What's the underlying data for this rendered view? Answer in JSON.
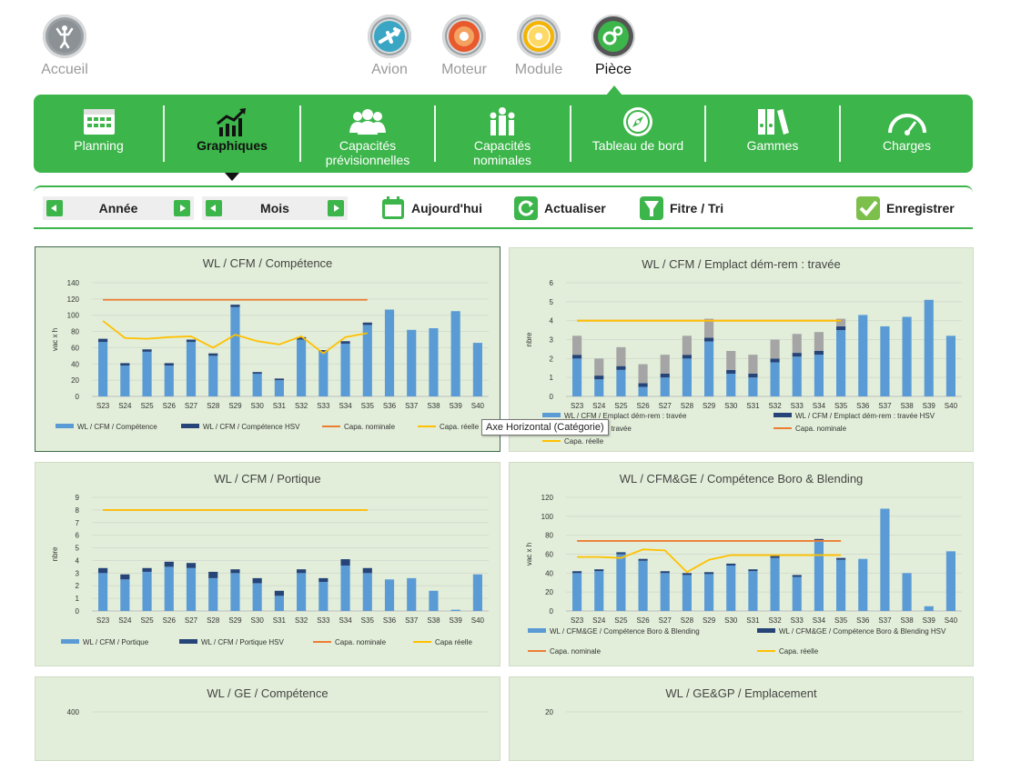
{
  "topnav": [
    {
      "label": "Accueil",
      "icon": "person-icon",
      "active": false
    },
    {
      "label": "Avion",
      "icon": "airplane-icon",
      "active": false
    },
    {
      "label": "Moteur",
      "icon": "engine-icon",
      "active": false
    },
    {
      "label": "Module",
      "icon": "module-icon",
      "active": false
    },
    {
      "label": "Pièce",
      "icon": "gears-icon",
      "active": true
    }
  ],
  "ribbon": [
    {
      "label": "Planning",
      "icon": "calendar-icon",
      "active": false
    },
    {
      "label": "Graphiques",
      "icon": "chart-trend-icon",
      "active": true
    },
    {
      "label": "Capacités prévisionnelles",
      "line1": "Capacités",
      "line2": "prévisionnelles",
      "icon": "people-icon",
      "active": false
    },
    {
      "label": "Capacités nominales",
      "line1": "Capacités",
      "line2": "nominales",
      "icon": "team-icon",
      "active": false
    },
    {
      "label": "Tableau de bord",
      "icon": "compass-icon",
      "active": false
    },
    {
      "label": "Gammes",
      "icon": "binders-icon",
      "active": false
    },
    {
      "label": "Charges",
      "icon": "gauge-icon",
      "active": false
    }
  ],
  "toolbar": {
    "year_label": "Année",
    "month_label": "Mois",
    "today_label": "Aujourd'hui",
    "refresh_label": "Actualiser",
    "filter_label": "Fitre / Tri",
    "save_label": "Enregistrer"
  },
  "tooltip": "Axe Horizontal (Catégorie)",
  "colors": {
    "green": "#3cb54a",
    "bar_light": "#5b9bd5",
    "bar_dark": "#264478",
    "bar_grey": "#a5a5a5",
    "nominal": "#ed7d31",
    "real": "#ffc000",
    "panel_bg": "#e2eed9"
  },
  "chart_data": [
    {
      "type": "bar",
      "title": "WL / CFM / Compétence",
      "ylabel": "vac x h",
      "ylim": [
        0,
        140
      ],
      "yticks": [
        0,
        20,
        40,
        60,
        80,
        100,
        120,
        140
      ],
      "categories": [
        "S23",
        "S24",
        "S25",
        "S26",
        "S27",
        "S28",
        "S29",
        "S30",
        "S31",
        "S32",
        "S33",
        "S34",
        "S35",
        "S36",
        "S37",
        "S38",
        "S39",
        "S40"
      ],
      "series": [
        {
          "name": "WL / CFM / Compétence",
          "kind": "bar",
          "values": [
            67,
            38,
            55,
            38,
            67,
            50,
            110,
            28,
            20,
            70,
            55,
            65,
            88,
            107,
            82,
            84,
            105,
            66
          ]
        },
        {
          "name": "WL / CFM / Compétence HSV",
          "kind": "bar-stack",
          "values": [
            4,
            3,
            3,
            3,
            3,
            3,
            3,
            2,
            2,
            3,
            2,
            3,
            3,
            0,
            0,
            0,
            0,
            0
          ]
        },
        {
          "name": "Capa. nominale",
          "kind": "line",
          "values": [
            119,
            119,
            119,
            119,
            119,
            119,
            119,
            119,
            119,
            119,
            119,
            119,
            119,
            null,
            null,
            null,
            null,
            null
          ]
        },
        {
          "name": "Capa. réelle",
          "kind": "line",
          "values": [
            93,
            72,
            71,
            73,
            74,
            60,
            76,
            68,
            64,
            74,
            53,
            73,
            78,
            null,
            null,
            null,
            null,
            null
          ]
        }
      ],
      "legend": [
        {
          "name": "WL / CFM / Compétence"
        },
        {
          "name": "WL / CFM / Compétence HSV"
        },
        {
          "name": "Capa. nominale"
        },
        {
          "name": "Capa. réelle"
        }
      ]
    },
    {
      "type": "bar",
      "title": "WL / CFM / Emplact dém-rem : travée",
      "ylabel": "nbre",
      "ylim": [
        0,
        6
      ],
      "yticks": [
        0,
        1,
        2,
        3,
        4,
        5,
        6
      ],
      "categories": [
        "S23",
        "S24",
        "S25",
        "S26",
        "S27",
        "S28",
        "S29",
        "S30",
        "S31",
        "S32",
        "S33",
        "S34",
        "S35",
        "S36",
        "S37",
        "S38",
        "S39",
        "S40"
      ],
      "series": [
        {
          "name": "WL / CFM / Emplact dém-rem : travée",
          "kind": "bar",
          "values": [
            2.0,
            0.9,
            1.4,
            0.5,
            1.0,
            2.0,
            2.9,
            1.2,
            1.0,
            1.8,
            2.1,
            2.2,
            3.5,
            4.3,
            3.7,
            4.2,
            5.1,
            3.2
          ]
        },
        {
          "name": "WL / CFM / Emplact dém-rem : travée HSV",
          "kind": "bar-stack",
          "values": [
            0.2,
            0.2,
            0.2,
            0.2,
            0.2,
            0.2,
            0.2,
            0.2,
            0.2,
            0.2,
            0.2,
            0.2,
            0.2,
            0,
            0,
            0,
            0,
            0
          ]
        },
        {
          "name": "Emplact dém-rem : travée",
          "kind": "bar-stack2",
          "values": [
            1.0,
            0.9,
            1.0,
            1.0,
            1.0,
            1.0,
            1.0,
            1.0,
            1.0,
            1.0,
            1.0,
            1.0,
            0.4,
            0,
            0,
            0,
            0,
            0
          ]
        },
        {
          "name": "Capa. nominale",
          "kind": "line",
          "values": [
            4,
            4,
            4,
            4,
            4,
            4,
            4,
            4,
            4,
            4,
            4,
            4,
            4,
            null,
            null,
            null,
            null,
            null
          ]
        },
        {
          "name": "Capa. réelle",
          "kind": "line",
          "values": [
            4,
            4,
            4,
            4,
            4,
            4,
            4,
            4,
            4,
            4,
            4,
            4,
            4,
            null,
            null,
            null,
            null,
            null
          ]
        }
      ],
      "legend": [
        {
          "name": "WL / CFM / Emplact dém-rem : travée"
        },
        {
          "name": "WL / CFM / Emplact dém-rem : travée HSV"
        },
        {
          "name": "act dém-rem : travée"
        },
        {
          "name": "Capa. nominale"
        },
        {
          "name": "Capa. réelle"
        }
      ]
    },
    {
      "type": "bar",
      "title": "WL / CFM / Portique",
      "ylabel": "nbre",
      "ylim": [
        0,
        9
      ],
      "yticks": [
        0,
        1,
        2,
        3,
        4,
        5,
        6,
        7,
        8,
        9
      ],
      "categories": [
        "S23",
        "S24",
        "S25",
        "S26",
        "S27",
        "S28",
        "S29",
        "S30",
        "S31",
        "S32",
        "S33",
        "S34",
        "S35",
        "S36",
        "S37",
        "S38",
        "S39",
        "S40"
      ],
      "series": [
        {
          "name": "WL / CFM / Portique",
          "kind": "bar",
          "values": [
            3.0,
            2.5,
            3.1,
            3.5,
            3.4,
            2.6,
            3.0,
            2.2,
            1.2,
            3.0,
            2.3,
            3.6,
            3.0,
            2.5,
            2.6,
            1.6,
            0.1,
            2.9
          ]
        },
        {
          "name": "WL / CFM / Portique HSV",
          "kind": "bar-stack",
          "values": [
            0.4,
            0.4,
            0.3,
            0.4,
            0.4,
            0.5,
            0.3,
            0.4,
            0.4,
            0.3,
            0.3,
            0.5,
            0.4,
            0,
            0,
            0,
            0,
            0
          ]
        },
        {
          "name": "Capa. nominale",
          "kind": "line",
          "values": [
            8,
            8,
            8,
            8,
            8,
            8,
            8,
            8,
            8,
            8,
            8,
            8,
            8,
            null,
            null,
            null,
            null,
            null
          ]
        },
        {
          "name": "Capa réelle",
          "kind": "line",
          "values": [
            8,
            8,
            8,
            8,
            8,
            8,
            8,
            8,
            8,
            8,
            8,
            8,
            8,
            null,
            null,
            null,
            null,
            null
          ]
        }
      ],
      "legend": [
        {
          "name": "WL / CFM / Portique"
        },
        {
          "name": "WL / CFM / Portique HSV"
        },
        {
          "name": "Capa. nominale"
        },
        {
          "name": "Capa réelle"
        }
      ]
    },
    {
      "type": "bar",
      "title": "WL / CFM&GE / Compétence Boro & Blending",
      "ylabel": "vac x h",
      "ylim": [
        0,
        120
      ],
      "yticks": [
        0,
        20,
        40,
        60,
        80,
        100,
        120
      ],
      "categories": [
        "S23",
        "S24",
        "S25",
        "S26",
        "S27",
        "S28",
        "S29",
        "S30",
        "S31",
        "S32",
        "S33",
        "S34",
        "S35",
        "S36",
        "S37",
        "S38",
        "S39",
        "S40"
      ],
      "series": [
        {
          "name": "WL / CFM&GE / Compétence Boro & Blending",
          "kind": "bar",
          "values": [
            40,
            42,
            60,
            53,
            40,
            38,
            39,
            48,
            42,
            56,
            36,
            74,
            54,
            55,
            108,
            40,
            5,
            63
          ]
        },
        {
          "name": "WL / CFM&GE / Compétence Boro & Blending HSV",
          "kind": "bar-stack",
          "values": [
            2,
            2,
            2,
            2,
            2,
            2,
            2,
            2,
            2,
            2,
            2,
            2,
            2,
            0,
            0,
            0,
            0,
            0
          ]
        },
        {
          "name": "Capa. nominale",
          "kind": "line",
          "values": [
            74,
            74,
            74,
            74,
            74,
            74,
            74,
            74,
            74,
            74,
            74,
            74,
            74,
            null,
            null,
            null,
            null,
            null
          ]
        },
        {
          "name": "Capa. réelle",
          "kind": "line",
          "values": [
            57,
            57,
            56,
            65,
            64,
            41,
            54,
            59,
            59,
            59,
            59,
            59,
            59,
            null,
            null,
            null,
            null,
            null
          ]
        }
      ],
      "legend": [
        {
          "name": "WL / CFM&GE / Compétence Boro & Blending"
        },
        {
          "name": "WL / CFM&GE / Compétence Boro & Blending HSV"
        },
        {
          "name": "Capa. nominale"
        },
        {
          "name": "Capa. réelle"
        }
      ]
    },
    {
      "type": "bar",
      "title": "WL / GE / Compétence",
      "ylim": [
        0,
        400
      ],
      "yticks": [
        400
      ],
      "categories": [],
      "series": []
    },
    {
      "type": "bar",
      "title": "WL / GE&GP / Emplacement",
      "ylim": [
        0,
        20
      ],
      "yticks": [
        20
      ],
      "categories": [],
      "series": []
    }
  ]
}
